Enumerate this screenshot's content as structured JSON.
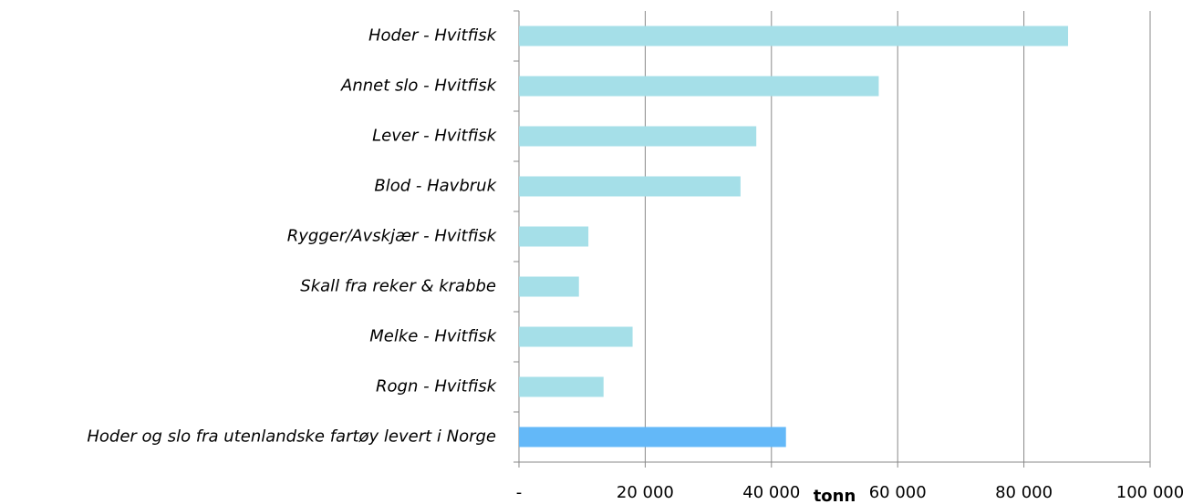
{
  "chart_data": {
    "type": "bar",
    "orientation": "horizontal",
    "categories": [
      "Hoder - Hvitfisk",
      "Annet slo - Hvitfisk",
      "Lever - Hvitfisk",
      "Blod - Havbruk",
      "Rygger/Avskjær - Hvitfisk",
      "Skall fra reker & krabbe",
      "Melke - Hvitfisk",
      "Rogn - Hvitfisk",
      "Hoder og slo fra utenlandske fartøy levert i Norge"
    ],
    "values": [
      87000,
      57000,
      37600,
      35100,
      11000,
      9500,
      18000,
      13400,
      42300
    ],
    "colors": [
      "#a5dfe8",
      "#a5dfe8",
      "#a5dfe8",
      "#a5dfe8",
      "#a5dfe8",
      "#a5dfe8",
      "#a5dfe8",
      "#a5dfe8",
      "#63b8f8"
    ],
    "xlabel": "tonn",
    "xlim": [
      0,
      100000
    ],
    "xticks": [
      {
        "value": 0,
        "label": "-"
      },
      {
        "value": 20000,
        "label": "20 000"
      },
      {
        "value": 40000,
        "label": "40 000"
      },
      {
        "value": 60000,
        "label": "60 000"
      },
      {
        "value": 80000,
        "label": "80 000"
      },
      {
        "value": 100000,
        "label": "100 000"
      }
    ],
    "grid": true
  }
}
